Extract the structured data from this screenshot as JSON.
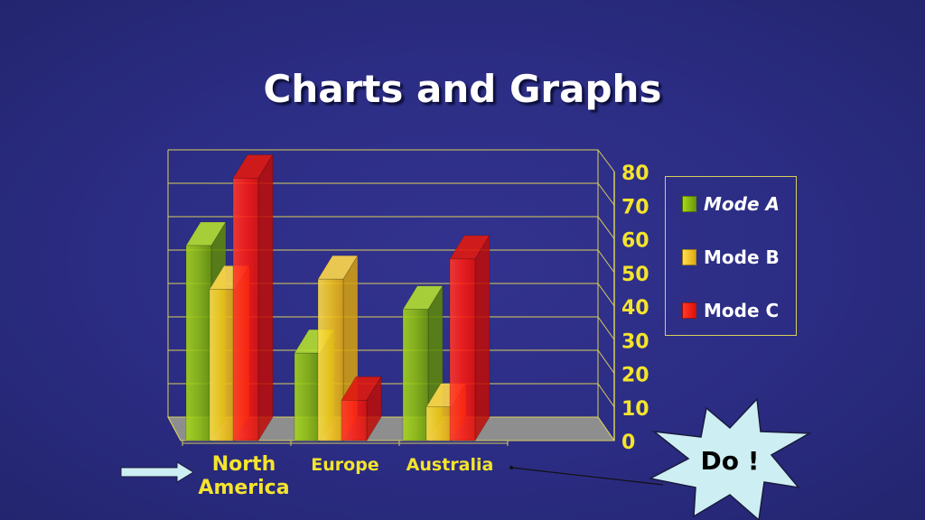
{
  "title": "Charts and Graphs",
  "callout": {
    "label": "Do !"
  },
  "colors": {
    "mode_a": "#8fbf10",
    "mode_b": "#f6c81c",
    "mode_c": "#ff1a12",
    "axis_text": "#f4e42c",
    "grid": "#d8cf5a",
    "floor": "#8e8e8e",
    "callout_fill": "#cdeef2"
  },
  "chart_data": {
    "type": "bar",
    "categories": [
      "North\nAmerica",
      "Europe",
      "Australia"
    ],
    "series": [
      {
        "name": "Mode A",
        "values": [
          58,
          26,
          39
        ]
      },
      {
        "name": "Mode B",
        "values": [
          45,
          48,
          10
        ]
      },
      {
        "name": "Mode C",
        "values": [
          78,
          12,
          54
        ]
      }
    ],
    "ylim": [
      0,
      80
    ],
    "yticks": [
      0,
      10,
      20,
      30,
      40,
      50,
      60,
      70,
      80
    ],
    "legend": "right",
    "grid": true
  }
}
